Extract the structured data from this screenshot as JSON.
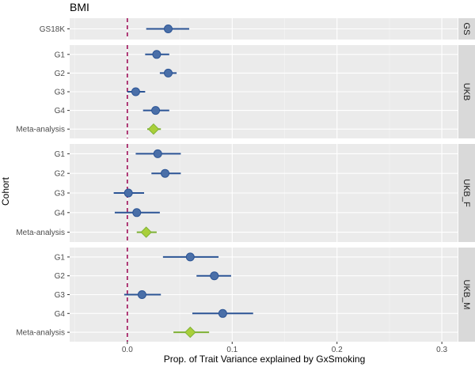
{
  "chart_data": {
    "type": "forest",
    "title": "BMI",
    "xlabel": "Prop. of Trait Variance explained by GxSmoking",
    "ylabel": "Cohort",
    "xlim": [
      -0.055,
      0.315
    ],
    "xticks": [
      0.0,
      0.1,
      0.2,
      0.3
    ],
    "xtick_labels": [
      "0.0",
      "0.1",
      "0.2",
      "0.3"
    ],
    "reference_line": 0,
    "colors": {
      "cohort_point": "#4a6fa8",
      "cohort_line": "#2c5596",
      "meta_point": "#a9cf3a",
      "meta_line": "#7fb236",
      "zero_line": "#a0105a"
    },
    "panels": [
      {
        "name": "GS",
        "rows": [
          {
            "label": "GS18K",
            "estimate": 0.039,
            "lower": 0.018,
            "upper": 0.059,
            "meta": false
          }
        ]
      },
      {
        "name": "UKB",
        "rows": [
          {
            "label": "G1",
            "estimate": 0.028,
            "lower": 0.017,
            "upper": 0.04,
            "meta": false
          },
          {
            "label": "G2",
            "estimate": 0.039,
            "lower": 0.031,
            "upper": 0.047,
            "meta": false
          },
          {
            "label": "G3",
            "estimate": 0.008,
            "lower": 0.0,
            "upper": 0.017,
            "meta": false
          },
          {
            "label": "G4",
            "estimate": 0.027,
            "lower": 0.015,
            "upper": 0.04,
            "meta": false
          },
          {
            "label": "Meta-analysis",
            "estimate": 0.025,
            "lower": 0.019,
            "upper": 0.032,
            "meta": true
          }
        ]
      },
      {
        "name": "UKB_F",
        "rows": [
          {
            "label": "G1",
            "estimate": 0.029,
            "lower": 0.008,
            "upper": 0.051,
            "meta": false
          },
          {
            "label": "G2",
            "estimate": 0.036,
            "lower": 0.023,
            "upper": 0.051,
            "meta": false
          },
          {
            "label": "G3",
            "estimate": 0.001,
            "lower": -0.013,
            "upper": 0.016,
            "meta": false
          },
          {
            "label": "G4",
            "estimate": 0.009,
            "lower": -0.012,
            "upper": 0.031,
            "meta": false
          },
          {
            "label": "Meta-analysis",
            "estimate": 0.018,
            "lower": 0.009,
            "upper": 0.028,
            "meta": true
          }
        ]
      },
      {
        "name": "UKB_M",
        "rows": [
          {
            "label": "G1",
            "estimate": 0.06,
            "lower": 0.034,
            "upper": 0.087,
            "meta": false
          },
          {
            "label": "G2",
            "estimate": 0.083,
            "lower": 0.066,
            "upper": 0.099,
            "meta": false
          },
          {
            "label": "G3",
            "estimate": 0.014,
            "lower": -0.003,
            "upper": 0.032,
            "meta": false
          },
          {
            "label": "G4",
            "estimate": 0.091,
            "lower": 0.062,
            "upper": 0.12,
            "meta": false
          },
          {
            "label": "Meta-analysis",
            "estimate": 0.06,
            "lower": 0.044,
            "upper": 0.078,
            "meta": true
          }
        ]
      }
    ]
  }
}
